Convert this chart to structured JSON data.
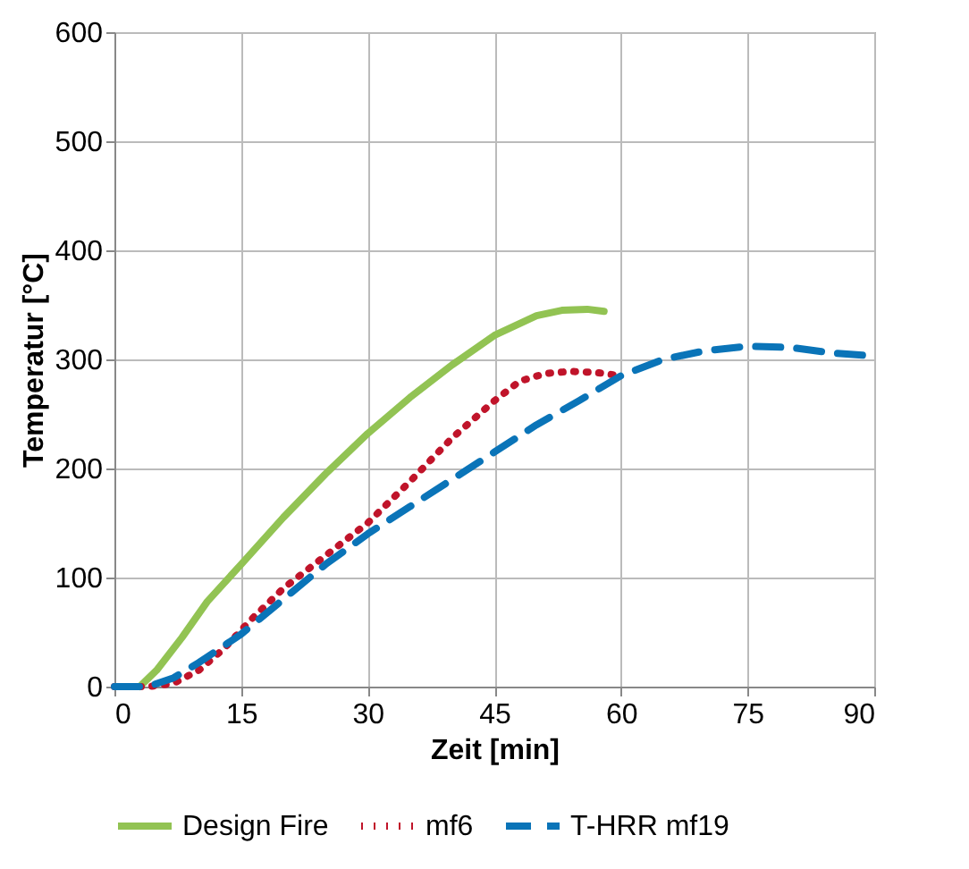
{
  "chart_data": {
    "type": "line",
    "xlabel": "Zeit [min]",
    "ylabel": "Temperatur [°C]",
    "xlim": [
      0,
      90
    ],
    "ylim": [
      0,
      600
    ],
    "xticks": [
      0,
      15,
      30,
      45,
      60,
      75,
      90
    ],
    "yticks": [
      0,
      100,
      200,
      300,
      400,
      500,
      600
    ],
    "grid": true,
    "legend": "bottom",
    "series": [
      {
        "name": "Design Fire",
        "color": "#92c353",
        "line_style": "solid",
        "x": [
          3,
          5,
          8,
          11,
          15,
          20,
          25,
          30,
          35,
          40,
          45,
          50,
          53,
          56,
          58
        ],
        "values": [
          0,
          15,
          45,
          78,
          112,
          155,
          195,
          232,
          265,
          295,
          322,
          340,
          345,
          346,
          344
        ]
      },
      {
        "name": "mf6",
        "color": "#c0142a",
        "line_style": "dotted",
        "x": [
          0,
          4,
          7,
          10,
          13,
          16,
          20,
          25,
          30,
          35,
          40,
          45,
          48,
          51,
          54,
          57,
          60
        ],
        "values": [
          0,
          0,
          3,
          15,
          35,
          60,
          90,
          120,
          150,
          188,
          228,
          262,
          280,
          287,
          289,
          288,
          285
        ]
      },
      {
        "name": "T-HRR mf19",
        "color": "#0a74b8",
        "line_style": "dashed",
        "x": [
          0,
          4,
          7,
          10,
          15,
          20,
          25,
          30,
          35,
          40,
          45,
          50,
          55,
          60,
          65,
          70,
          75,
          80,
          85,
          90
        ],
        "values": [
          0,
          0,
          8,
          22,
          48,
          80,
          112,
          140,
          165,
          190,
          215,
          240,
          262,
          285,
          300,
          308,
          312,
          311,
          306,
          303
        ]
      }
    ]
  }
}
